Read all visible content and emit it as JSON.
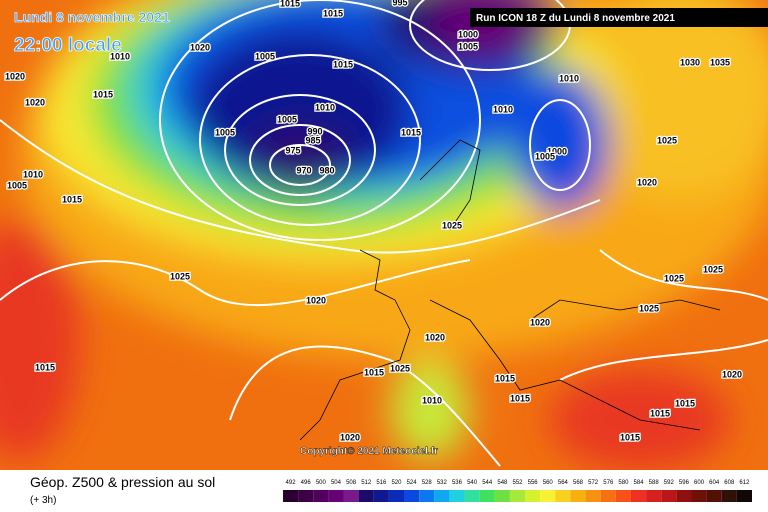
{
  "header": {
    "date": "Lundi 8 novembre 2021",
    "time": "22:00 locale",
    "run": "Run ICON 18 Z du Lundi 8 novembre 2021"
  },
  "copyright": "Copyright© 2021 Meteociel.fr",
  "footer": {
    "title": "Géop. Z500 & pression au sol",
    "subtitle": "(+ 3h)"
  },
  "legend": {
    "values": [
      492,
      496,
      500,
      504,
      508,
      512,
      516,
      520,
      524,
      528,
      532,
      536,
      540,
      544,
      548,
      552,
      556,
      560,
      564,
      568,
      572,
      576,
      580,
      584,
      588,
      592,
      596,
      600,
      604,
      608,
      612
    ],
    "colors": [
      "#2a0030",
      "#3d0048",
      "#520060",
      "#680078",
      "#7a1a8a",
      "#1a0a6a",
      "#101890",
      "#0a2ab8",
      "#0a48e0",
      "#0a78f0",
      "#10a8f0",
      "#20d0e0",
      "#30e0a0",
      "#40e060",
      "#70e040",
      "#a8e838",
      "#d8f030",
      "#f8f030",
      "#f8d020",
      "#f8b010",
      "#f89010",
      "#f87010",
      "#f85018",
      "#f03020",
      "#d82020",
      "#b81818",
      "#901010",
      "#701008",
      "#501008",
      "#301008",
      "#100808"
    ]
  },
  "isobar_labels": [
    1015,
    1015,
    995,
    1000,
    1005,
    1020,
    1010,
    1005,
    1015,
    1010,
    1030,
    1035,
    1020,
    1015,
    1020,
    1010,
    1010,
    1005,
    990,
    1005,
    1015,
    985,
    1025,
    1000,
    1005,
    975,
    970,
    980,
    1010,
    1005,
    1020,
    1015,
    1025,
    1025,
    1025,
    1025,
    1020,
    1025,
    1020,
    1020,
    1015,
    1025,
    1015,
    1015,
    1015,
    1010,
    1020,
    1015,
    1015,
    1015,
    1020
  ]
}
